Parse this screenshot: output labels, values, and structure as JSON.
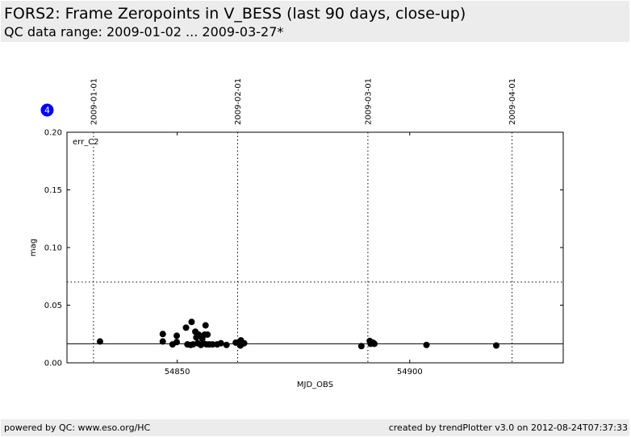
{
  "header": {
    "title": "FORS2: Frame Zeropoints in V_BESS (last 90 days, close-up)",
    "subtitle": "QC data range: 2009-01-02 ... 2009-03-27*"
  },
  "footer": {
    "left": "powered by QC: www.eso.org/HC",
    "right": "created by trendPlotter v3.0 on 2012-08-24T07:37:33"
  },
  "badge": {
    "label": "4",
    "color": "#0000ff"
  },
  "chart_data": {
    "type": "scatter",
    "xlabel": "MJD_OBS",
    "ylabel": "mag",
    "annotation": "err_C2",
    "xlim": [
      54826.3,
      54933.0
    ],
    "ylim": [
      0.0,
      0.2
    ],
    "x_ticks": [
      {
        "value": 54850,
        "label": "54850"
      },
      {
        "value": 54900,
        "label": "54900"
      }
    ],
    "y_ticks": [
      {
        "value": 0.0,
        "label": "0.00"
      },
      {
        "value": 0.05,
        "label": "0.05"
      },
      {
        "value": 0.1,
        "label": "0.10"
      },
      {
        "value": 0.15,
        "label": "0.15"
      },
      {
        "value": 0.2,
        "label": "0.20"
      }
    ],
    "date_markers": [
      {
        "value": 54832,
        "label": "2009-01-01"
      },
      {
        "value": 54863,
        "label": "2009-02-01"
      },
      {
        "value": 54891,
        "label": "2009-03-01"
      },
      {
        "value": 54922,
        "label": "2009-04-01"
      }
    ],
    "reference_lines": {
      "solid": 0.0165,
      "dotted": 0.07
    },
    "marker_color": "#000000",
    "series": [
      {
        "x": [
          54833.4,
          54846.9,
          54846.9,
          54849.0,
          54849.9,
          54849.9,
          54851.9,
          54852.2,
          54852.9,
          54853.1,
          54853.4,
          54853.9,
          54854.1,
          54854.4,
          54854.6,
          54855.1,
          54855.4,
          54855.6,
          54855.9,
          54856.1,
          54856.3,
          54856.5,
          54856.9,
          54857.6,
          54858.6,
          54859.4,
          54860.6,
          54862.6,
          54863.6,
          54863.7,
          54863.9,
          54864.4,
          54889.6,
          54891.4,
          54891.6,
          54892.1,
          54892.4,
          54903.6,
          54918.6
        ],
        "y": [
          0.0185,
          0.025,
          0.0185,
          0.016,
          0.0235,
          0.018,
          0.0305,
          0.016,
          0.0155,
          0.0355,
          0.016,
          0.027,
          0.022,
          0.017,
          0.0245,
          0.0155,
          0.021,
          0.017,
          0.0245,
          0.0325,
          0.016,
          0.0245,
          0.016,
          0.016,
          0.016,
          0.017,
          0.0155,
          0.0175,
          0.015,
          0.0195,
          0.0165,
          0.017,
          0.0145,
          0.019,
          0.0165,
          0.0175,
          0.0165,
          0.0155,
          0.015
        ]
      }
    ]
  }
}
